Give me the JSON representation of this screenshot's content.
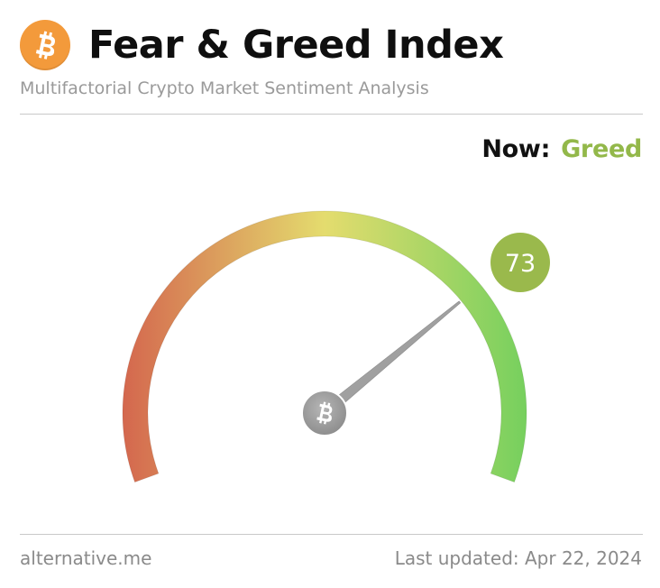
{
  "header": {
    "title": "Fear & Greed Index",
    "subtitle": "Multifactorial Crypto Market Sentiment Analysis",
    "logo_icon": "bitcoin-icon",
    "logo_color": "#f39a3b"
  },
  "status": {
    "now_label": "Now:",
    "classification": "Greed",
    "classification_color": "#93b84a"
  },
  "gauge": {
    "value": 73,
    "min": 0,
    "max": 100,
    "value_text": "73",
    "badge_color": "#9ab94c",
    "hub_icon": "bitcoin-icon",
    "colors": {
      "fear": "#d4674e",
      "neutral": "#e4dc6e",
      "greed": "#76d05e"
    }
  },
  "footer": {
    "source": "alternative.me",
    "last_updated": "Last updated: Apr 22, 2024"
  }
}
